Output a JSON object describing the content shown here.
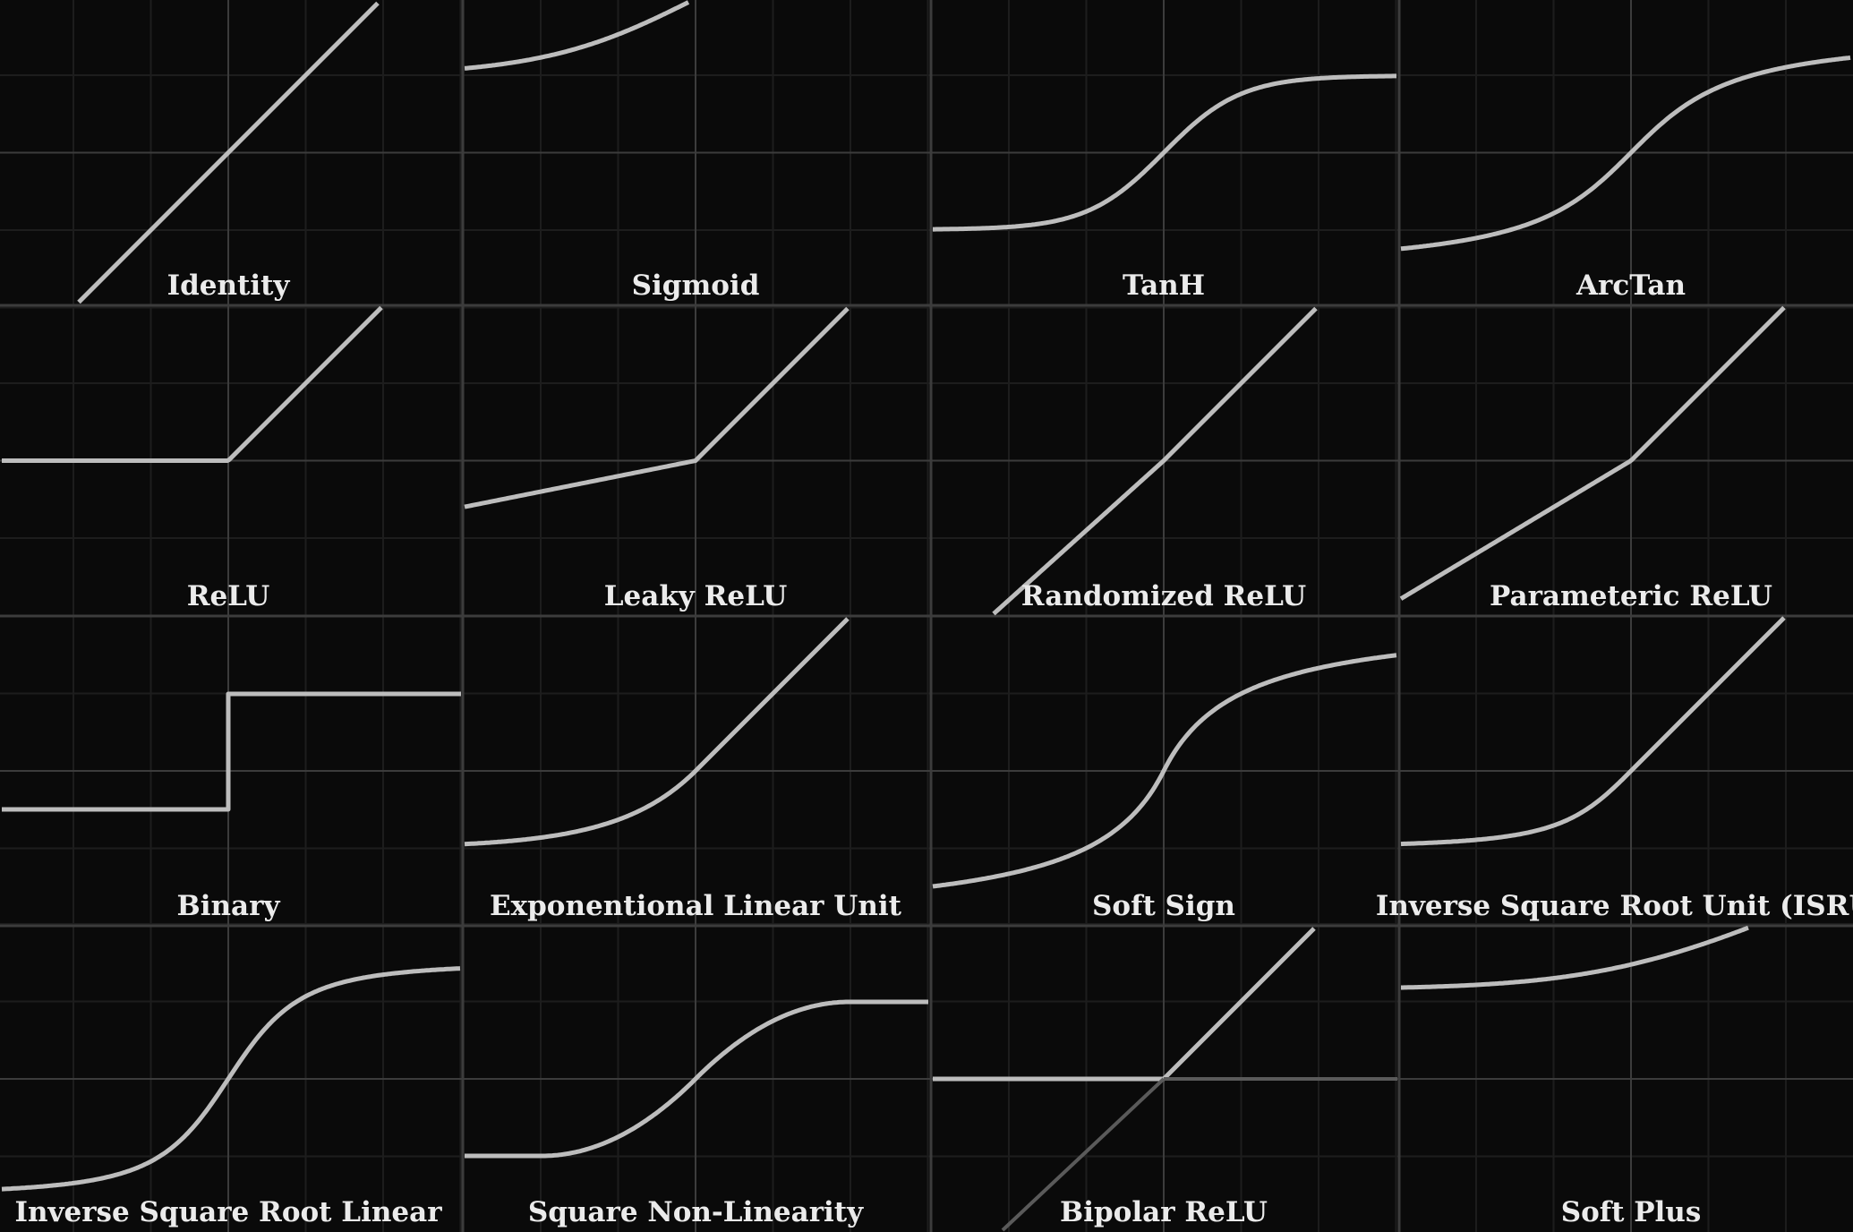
{
  "colors": {
    "background": "#0a0a0a",
    "minor_grid": "#1d1d1d",
    "major_grid": "#3c3c3c",
    "curve": "#bdbdbd",
    "faint_curve": "#5a5a5a",
    "label": "#ebebeb"
  },
  "panels": [
    {
      "name": "identity",
      "label": "Identity",
      "function": "identity"
    },
    {
      "name": "sigmoid",
      "label": "Sigmoid",
      "function": "sigmoid"
    },
    {
      "name": "tanh",
      "label": "TanH",
      "function": "tanh"
    },
    {
      "name": "arctan",
      "label": "ArcTan",
      "function": "arctan"
    },
    {
      "name": "relu",
      "label": "ReLU",
      "function": "relu"
    },
    {
      "name": "leaky-relu",
      "label": "Leaky ReLU",
      "function": "leaky_relu"
    },
    {
      "name": "randomized-relu",
      "label": "Randomized ReLU",
      "function": "randomized_relu"
    },
    {
      "name": "parameteric-relu",
      "label": "Parameteric ReLU",
      "function": "parametric_relu"
    },
    {
      "name": "binary",
      "label": "Binary",
      "function": "binary"
    },
    {
      "name": "exponentional-linear-unit",
      "label": "Exponentional Linear Unit",
      "function": "elu"
    },
    {
      "name": "soft-sign",
      "label": "Soft Sign",
      "function": "softsign"
    },
    {
      "name": "isru",
      "label": "Inverse Square Root Unit (ISRU)",
      "function": "isru"
    },
    {
      "name": "isrlu",
      "label": "Inverse Square Root Linear",
      "function": "isrlu"
    },
    {
      "name": "square-non-linearity",
      "label": "Square Non-Linearity",
      "function": "sqnl"
    },
    {
      "name": "bipolar-relu",
      "label": "Bipolar ReLU",
      "function": "bipolar_relu"
    },
    {
      "name": "soft-plus",
      "label": "Soft Plus",
      "function": "softplus"
    }
  ]
}
